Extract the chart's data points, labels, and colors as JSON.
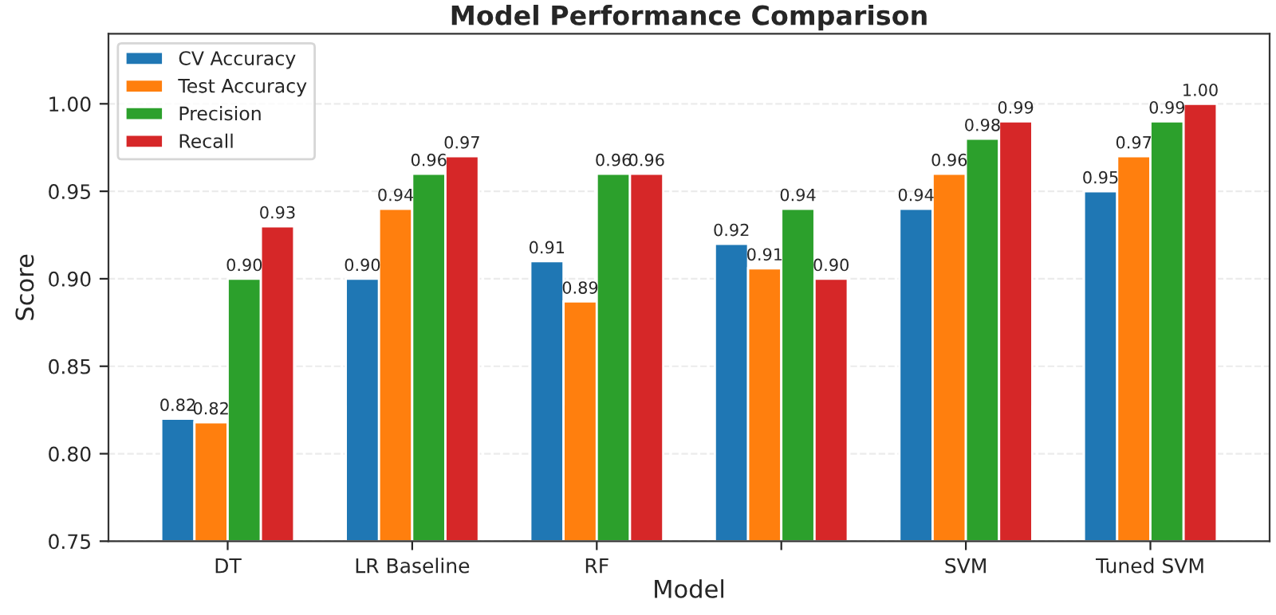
{
  "chart_data": {
    "type": "bar",
    "title": "Model Performance Comparison",
    "xlabel": "Model",
    "ylabel": "Score",
    "categories": [
      "DT",
      "LR Baseline",
      "RF",
      null,
      "SVM",
      "Tuned SVM"
    ],
    "series": [
      {
        "name": "CV Accuracy",
        "color": "#1f77b4",
        "values": [
          0.82,
          0.9,
          0.91,
          0.92,
          0.94,
          0.95
        ],
        "value_labels": [
          "0.82",
          "0.90",
          "0.91",
          "0.92",
          "0.94",
          "0.95"
        ]
      },
      {
        "name": "Test Accuracy",
        "color": "#ff7f0e",
        "values": [
          0.818,
          0.94,
          0.887,
          0.906,
          0.96,
          0.97
        ],
        "value_labels": [
          "0.82",
          "0.94",
          "0.89",
          "0.91",
          "0.96",
          "0.97"
        ]
      },
      {
        "name": "Precision",
        "color": "#2ca02c",
        "values": [
          0.9,
          0.96,
          0.96,
          0.94,
          0.98,
          0.99
        ],
        "value_labels": [
          "0.90",
          "0.96",
          "0.96",
          "0.94",
          "0.98",
          "0.99"
        ]
      },
      {
        "name": "Recall",
        "color": "#d62728",
        "values": [
          0.93,
          0.97,
          0.96,
          0.9,
          0.99,
          1.0
        ],
        "value_labels": [
          "0.93",
          "0.97",
          "0.96",
          "0.90",
          "0.99",
          "1.00"
        ]
      }
    ],
    "ylim": [
      0.75,
      1.04
    ],
    "yticks": [
      {
        "value": 0.75,
        "label": "0.75"
      },
      {
        "value": 0.8,
        "label": "0.80"
      },
      {
        "value": 0.85,
        "label": "0.85"
      },
      {
        "value": 0.9,
        "label": "0.90"
      },
      {
        "value": 0.95,
        "label": "0.95"
      },
      {
        "value": 1.0,
        "label": "1.00"
      }
    ],
    "grid": "y",
    "legend": "top left"
  }
}
